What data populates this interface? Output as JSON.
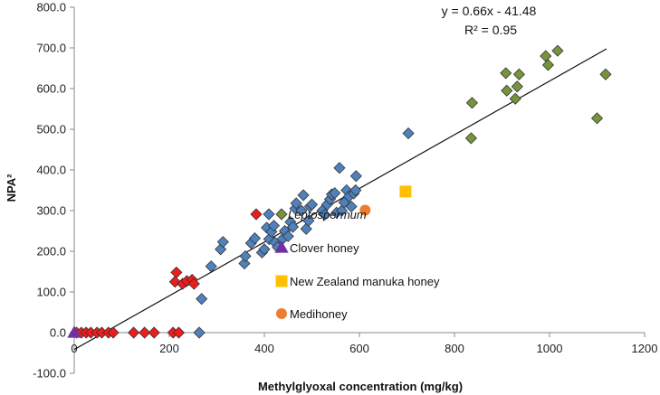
{
  "chart_data": {
    "type": "scatter",
    "title": "",
    "xlabel": "Methylglyoxal concentration (mg/kg)",
    "ylabel": "NPA²",
    "xlim": [
      0,
      1200
    ],
    "ylim": [
      -100,
      800
    ],
    "x_ticks": [
      0,
      200,
      400,
      600,
      800,
      1000,
      1200
    ],
    "x_tick_labels": [
      "0",
      "200",
      "400",
      "600",
      "800",
      "1000",
      "1200"
    ],
    "y_ticks": [
      -100,
      0,
      100,
      200,
      300,
      400,
      500,
      600,
      700,
      800
    ],
    "y_tick_labels": [
      "-100.0",
      "0.0",
      "100.0",
      "200.0",
      "300.0",
      "400.0",
      "500.0",
      "600.0",
      "700.0",
      "800.0"
    ],
    "grid": false,
    "trendline": {
      "equation": "y = 0.66x - 41.48",
      "r_squared": "R² = 0.95",
      "slope": 0.66,
      "intercept": -41.48,
      "x_range": [
        0,
        1120
      ]
    },
    "series": [
      {
        "name": "Leptospermum (red)",
        "marker": "diamond",
        "color": "#ee1c1c",
        "points": [
          [
            5,
            0
          ],
          [
            15,
            0
          ],
          [
            25,
            0
          ],
          [
            35,
            0
          ],
          [
            48,
            0
          ],
          [
            58,
            0
          ],
          [
            72,
            0
          ],
          [
            82,
            0
          ],
          [
            125,
            0
          ],
          [
            148,
            0
          ],
          [
            168,
            0
          ],
          [
            208,
            0
          ],
          [
            220,
            0
          ],
          [
            215,
            148
          ],
          [
            212,
            125
          ],
          [
            228,
            120
          ],
          [
            237,
            127
          ],
          [
            248,
            130
          ],
          [
            252,
            120
          ]
        ]
      },
      {
        "name": "Leptospermum (blue)",
        "marker": "diamond",
        "color": "#4f81bd",
        "points": [
          [
            263,
            0
          ],
          [
            268,
            83
          ],
          [
            288,
            163
          ],
          [
            308,
            205
          ],
          [
            313,
            223
          ],
          [
            358,
            170
          ],
          [
            360,
            188
          ],
          [
            372,
            220
          ],
          [
            380,
            232
          ],
          [
            395,
            197
          ],
          [
            400,
            205
          ],
          [
            405,
            258
          ],
          [
            410,
            230
          ],
          [
            415,
            248
          ],
          [
            420,
            263
          ],
          [
            422,
            222
          ],
          [
            428,
            210
          ],
          [
            438,
            230
          ],
          [
            443,
            250
          ],
          [
            450,
            237
          ],
          [
            455,
            272
          ],
          [
            460,
            260
          ],
          [
            465,
            305
          ],
          [
            467,
            318
          ],
          [
            478,
            300
          ],
          [
            482,
            338
          ],
          [
            488,
            255
          ],
          [
            493,
            275
          ],
          [
            496,
            310
          ],
          [
            500,
            315
          ],
          [
            522,
            300
          ],
          [
            527,
            290
          ],
          [
            532,
            315
          ],
          [
            538,
            328
          ],
          [
            542,
            340
          ],
          [
            548,
            343
          ],
          [
            552,
            295
          ],
          [
            558,
            405
          ],
          [
            563,
            300
          ],
          [
            568,
            320
          ],
          [
            573,
            350
          ],
          [
            578,
            335
          ],
          [
            583,
            310
          ],
          [
            588,
            342
          ],
          [
            593,
            385
          ],
          [
            592,
            350
          ],
          [
            703,
            490
          ]
        ]
      },
      {
        "name": "Leptospermum (green)",
        "marker": "diamond",
        "color": "#77933c",
        "points": [
          [
            835,
            478
          ],
          [
            837,
            565
          ],
          [
            908,
            638
          ],
          [
            910,
            595
          ],
          [
            928,
            575
          ],
          [
            932,
            605
          ],
          [
            936,
            635
          ],
          [
            992,
            680
          ],
          [
            997,
            658
          ],
          [
            1017,
            693
          ],
          [
            1100,
            527
          ],
          [
            1118,
            635
          ]
        ]
      },
      {
        "name": "Clover honey",
        "marker": "triangle",
        "color": "#7030a0",
        "points": [
          [
            0,
            0
          ]
        ]
      },
      {
        "name": "New Zealand manuka honey",
        "marker": "square",
        "color": "#ffc000",
        "points": [
          [
            697,
            347
          ]
        ]
      },
      {
        "name": "Medihoney",
        "marker": "circle",
        "color": "#ed7d31",
        "points": [
          [
            612,
            301
          ]
        ]
      }
    ],
    "legend": {
      "placement": "right-center",
      "entries": [
        {
          "label": "Leptospermum",
          "italic": true,
          "markers": [
            "diamond-red",
            "diamond-blue",
            "diamond-green"
          ],
          "colors": [
            "#ee1c1c",
            "#4f81bd",
            "#77933c"
          ]
        },
        {
          "label": "Clover honey",
          "italic": false,
          "markers": [
            "triangle"
          ],
          "colors": [
            "#7030a0"
          ]
        },
        {
          "label": "New Zealand manuka honey",
          "italic": false,
          "markers": [
            "square"
          ],
          "colors": [
            "#ffc000"
          ]
        },
        {
          "label": "Medihoney",
          "italic": false,
          "markers": [
            "circle"
          ],
          "colors": [
            "#ed7d31"
          ]
        }
      ]
    }
  }
}
